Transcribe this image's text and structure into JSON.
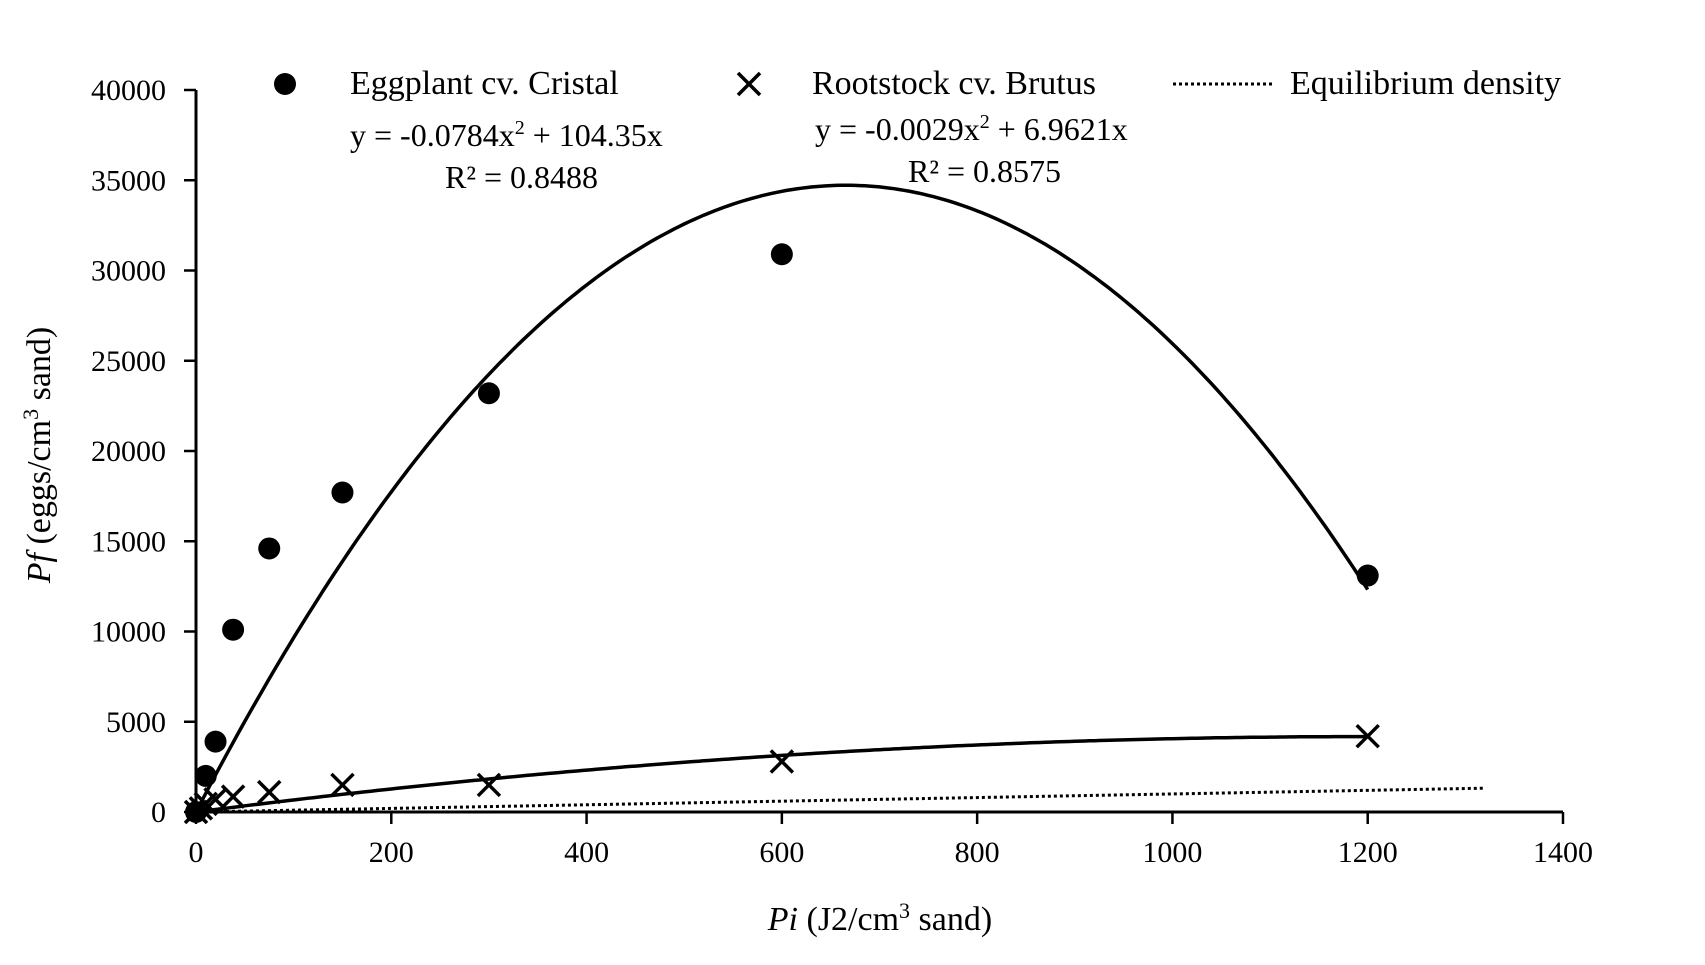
{
  "chart_data": {
    "type": "scatter",
    "xlabel": {
      "italic": "Pi",
      "rest": " (J2/cm",
      "sup": "3",
      "tail": " sand)"
    },
    "ylabel": {
      "italic": "Pf",
      "rest": " (eggs/cm",
      "sup": "3",
      "tail": " sand)"
    },
    "xlim": [
      0,
      1400
    ],
    "ylim": [
      0,
      40000
    ],
    "x_ticks": [
      "0",
      "200",
      "400",
      "600",
      "800",
      "1000",
      "1200",
      "1400"
    ],
    "y_ticks": [
      "0",
      "5000",
      "10000",
      "15000",
      "20000",
      "25000",
      "30000",
      "35000",
      "40000"
    ],
    "grid": false,
    "legend_position": "top",
    "series": [
      {
        "name": "Eggplant cv. Cristal",
        "marker": "circle",
        "x": [
          0,
          10,
          20,
          38,
          75,
          150,
          300,
          600,
          1200
        ],
        "y": [
          0,
          2000,
          3900,
          10100,
          14600,
          17700,
          23200,
          30900,
          13100
        ],
        "trendline": {
          "a": -0.0784,
          "b": 104.35,
          "xmax": 1200,
          "equation": {
            "pre": "y = -0.0784x",
            "sup": "2",
            "post": " + 104.35x"
          },
          "r2": "R² = 0.8488"
        }
      },
      {
        "name": "Rootstock cv. Brutus",
        "marker": "x",
        "x": [
          0,
          5,
          10,
          20,
          38,
          75,
          150,
          300,
          600,
          1200
        ],
        "y": [
          0,
          200,
          450,
          700,
          850,
          1100,
          1500,
          1500,
          2800,
          4200
        ],
        "trendline": {
          "a": -0.0029,
          "b": 6.9621,
          "xmax": 1200,
          "equation": {
            "pre": "y = -0.0029x",
            "sup": "2",
            "post": " + 6.9621x"
          },
          "r2": "R² = 0.8575"
        }
      },
      {
        "name": "Equilibrium density",
        "line_style": "dotted",
        "x": [
          0,
          1320
        ],
        "y": [
          0,
          1320
        ]
      }
    ]
  }
}
